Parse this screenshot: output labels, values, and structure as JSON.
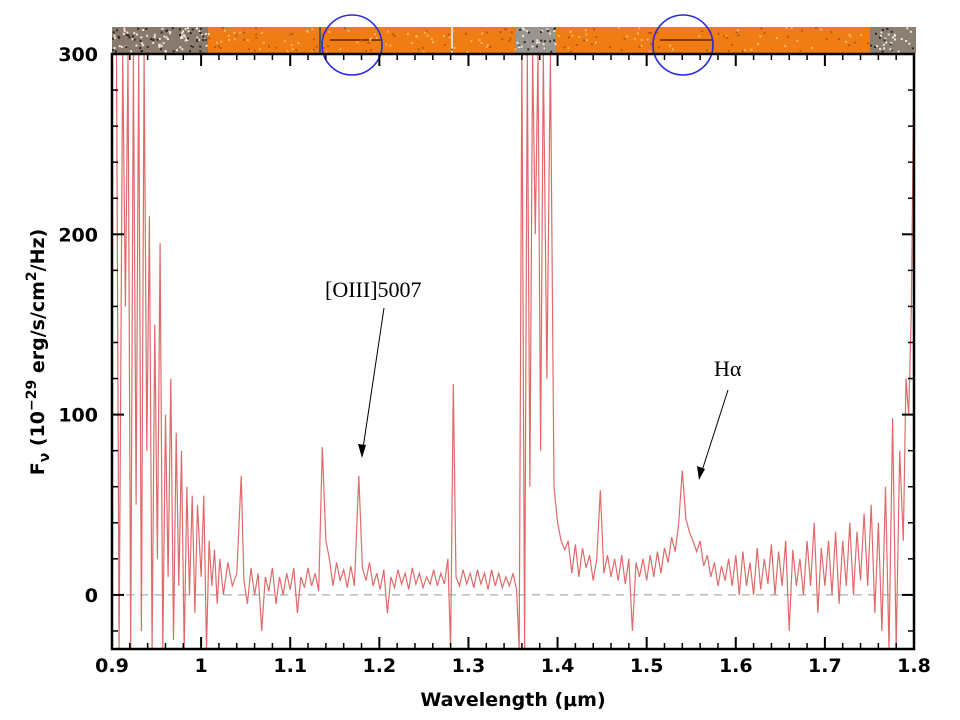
{
  "chart_data": {
    "type": "line",
    "xlabel_main": "Wavelength (",
    "xlabel_unit": "μm",
    "xlabel_close": ")",
    "ylabel_F": "F",
    "ylabel_sub": "ν",
    "ylabel_rest": " (10",
    "ylabel_exp": "−29",
    "ylabel_units": " erg/s/cm",
    "ylabel_sq": "2",
    "ylabel_end": "/Hz)",
    "xlim": [
      0.9,
      1.8
    ],
    "ylim": [
      -30,
      300
    ],
    "x_ticks": [
      0.9,
      1.0,
      1.1,
      1.2,
      1.3,
      1.4,
      1.5,
      1.6,
      1.7,
      1.8
    ],
    "x_tick_labels": [
      "0.9",
      "1",
      "1.1",
      "1.2",
      "1.3",
      "1.4",
      "1.5",
      "1.6",
      "1.7",
      "1.8"
    ],
    "y_ticks": [
      0,
      100,
      200,
      300
    ],
    "y_tick_labels": [
      "0",
      "100",
      "200",
      "300"
    ],
    "zero_line": "dashed",
    "line_color": "#e06a6a",
    "annotations": [
      {
        "text": "[OIII]5007",
        "x": 1.177,
        "y": 66
      },
      {
        "text": "Hα",
        "x": 1.553,
        "y": 65
      }
    ],
    "series": [
      {
        "values": [
          [
            0.905,
            300
          ],
          [
            0.908,
            -30
          ],
          [
            0.912,
            300
          ],
          [
            0.915,
            160
          ],
          [
            0.918,
            300
          ],
          [
            0.921,
            -30
          ],
          [
            0.924,
            300
          ],
          [
            0.927,
            50
          ],
          [
            0.93,
            300
          ],
          [
            0.933,
            -20
          ],
          [
            0.936,
            300
          ],
          [
            0.939,
            80
          ],
          [
            0.942,
            210
          ],
          [
            0.945,
            -30
          ],
          [
            0.948,
            150
          ],
          [
            0.951,
            20
          ],
          [
            0.954,
            195
          ],
          [
            0.957,
            -30
          ],
          [
            0.96,
            100
          ],
          [
            0.963,
            10
          ],
          [
            0.966,
            120
          ],
          [
            0.969,
            -25
          ],
          [
            0.972,
            90
          ],
          [
            0.975,
            5
          ],
          [
            0.978,
            80
          ],
          [
            0.981,
            -30
          ],
          [
            0.984,
            60
          ],
          [
            0.987,
            0
          ],
          [
            0.99,
            55
          ],
          [
            0.993,
            -10
          ],
          [
            0.996,
            50
          ],
          [
            1.0,
            10
          ],
          [
            1.003,
            55
          ],
          [
            1.006,
            -30
          ],
          [
            1.009,
            30
          ],
          [
            1.012,
            5
          ],
          [
            1.015,
            25
          ],
          [
            1.018,
            -5
          ],
          [
            1.021,
            20
          ],
          [
            1.025,
            0
          ],
          [
            1.03,
            18
          ],
          [
            1.035,
            5
          ],
          [
            1.04,
            12
          ],
          [
            1.045,
            66
          ],
          [
            1.048,
            8
          ],
          [
            1.052,
            -5
          ],
          [
            1.056,
            15
          ],
          [
            1.06,
            0
          ],
          [
            1.064,
            12
          ],
          [
            1.068,
            -20
          ],
          [
            1.072,
            10
          ],
          [
            1.076,
            2
          ],
          [
            1.08,
            15
          ],
          [
            1.084,
            -5
          ],
          [
            1.088,
            10
          ],
          [
            1.092,
            0
          ],
          [
            1.096,
            12
          ],
          [
            1.1,
            3
          ],
          [
            1.104,
            15
          ],
          [
            1.108,
            -10
          ],
          [
            1.112,
            10
          ],
          [
            1.116,
            4
          ],
          [
            1.12,
            15
          ],
          [
            1.124,
            5
          ],
          [
            1.128,
            12
          ],
          [
            1.132,
            2
          ],
          [
            1.136,
            82
          ],
          [
            1.14,
            30
          ],
          [
            1.144,
            20
          ],
          [
            1.148,
            5
          ],
          [
            1.152,
            18
          ],
          [
            1.156,
            8
          ],
          [
            1.16,
            14
          ],
          [
            1.164,
            4
          ],
          [
            1.168,
            16
          ],
          [
            1.172,
            5
          ],
          [
            1.177,
            66
          ],
          [
            1.181,
            15
          ],
          [
            1.185,
            8
          ],
          [
            1.189,
            18
          ],
          [
            1.193,
            5
          ],
          [
            1.197,
            12
          ],
          [
            1.201,
            3
          ],
          [
            1.205,
            14
          ],
          [
            1.209,
            -10
          ],
          [
            1.213,
            10
          ],
          [
            1.217,
            4
          ],
          [
            1.221,
            14
          ],
          [
            1.225,
            6
          ],
          [
            1.229,
            12
          ],
          [
            1.233,
            3
          ],
          [
            1.237,
            15
          ],
          [
            1.241,
            6
          ],
          [
            1.245,
            12
          ],
          [
            1.249,
            4
          ],
          [
            1.253,
            10
          ],
          [
            1.257,
            6
          ],
          [
            1.261,
            14
          ],
          [
            1.265,
            5
          ],
          [
            1.269,
            12
          ],
          [
            1.273,
            6
          ],
          [
            1.277,
            20
          ],
          [
            1.28,
            -30
          ],
          [
            1.283,
            117
          ],
          [
            1.286,
            10
          ],
          [
            1.29,
            5
          ],
          [
            1.294,
            14
          ],
          [
            1.298,
            6
          ],
          [
            1.302,
            12
          ],
          [
            1.306,
            4
          ],
          [
            1.31,
            14
          ],
          [
            1.314,
            6
          ],
          [
            1.318,
            12
          ],
          [
            1.322,
            3
          ],
          [
            1.326,
            14
          ],
          [
            1.33,
            5
          ],
          [
            1.334,
            12
          ],
          [
            1.338,
            4
          ],
          [
            1.342,
            10
          ],
          [
            1.346,
            5
          ],
          [
            1.35,
            12
          ],
          [
            1.354,
            3
          ],
          [
            1.357,
            -30
          ],
          [
            1.36,
            300
          ],
          [
            1.363,
            -30
          ],
          [
            1.366,
            300
          ],
          [
            1.369,
            60
          ],
          [
            1.372,
            300
          ],
          [
            1.375,
            200
          ],
          [
            1.378,
            300
          ],
          [
            1.381,
            80
          ],
          [
            1.384,
            300
          ],
          [
            1.388,
            120
          ],
          [
            1.392,
            300
          ],
          [
            1.396,
            60
          ],
          [
            1.4,
            40
          ],
          [
            1.404,
            30
          ],
          [
            1.408,
            25
          ],
          [
            1.412,
            30
          ],
          [
            1.416,
            12
          ],
          [
            1.42,
            28
          ],
          [
            1.424,
            10
          ],
          [
            1.428,
            26
          ],
          [
            1.432,
            15
          ],
          [
            1.436,
            22
          ],
          [
            1.44,
            8
          ],
          [
            1.444,
            20
          ],
          [
            1.448,
            58
          ],
          [
            1.452,
            12
          ],
          [
            1.456,
            22
          ],
          [
            1.46,
            10
          ],
          [
            1.464,
            20
          ],
          [
            1.468,
            8
          ],
          [
            1.472,
            22
          ],
          [
            1.476,
            6
          ],
          [
            1.48,
            20
          ],
          [
            1.484,
            -20
          ],
          [
            1.488,
            18
          ],
          [
            1.492,
            10
          ],
          [
            1.496,
            20
          ],
          [
            1.5,
            8
          ],
          [
            1.504,
            22
          ],
          [
            1.508,
            10
          ],
          [
            1.512,
            24
          ],
          [
            1.516,
            12
          ],
          [
            1.52,
            26
          ],
          [
            1.524,
            18
          ],
          [
            1.528,
            32
          ],
          [
            1.532,
            24
          ],
          [
            1.536,
            40
          ],
          [
            1.54,
            69
          ],
          [
            1.544,
            42
          ],
          [
            1.548,
            35
          ],
          [
            1.552,
            30
          ],
          [
            1.556,
            24
          ],
          [
            1.56,
            30
          ],
          [
            1.564,
            16
          ],
          [
            1.568,
            22
          ],
          [
            1.572,
            10
          ],
          [
            1.576,
            18
          ],
          [
            1.58,
            5
          ],
          [
            1.584,
            16
          ],
          [
            1.588,
            8
          ],
          [
            1.592,
            20
          ],
          [
            1.596,
            5
          ],
          [
            1.6,
            22
          ],
          [
            1.604,
            0
          ],
          [
            1.608,
            24
          ],
          [
            1.612,
            5
          ],
          [
            1.616,
            18
          ],
          [
            1.62,
            0
          ],
          [
            1.624,
            26
          ],
          [
            1.628,
            3
          ],
          [
            1.632,
            20
          ],
          [
            1.636,
            6
          ],
          [
            1.64,
            28
          ],
          [
            1.644,
            0
          ],
          [
            1.648,
            24
          ],
          [
            1.652,
            5
          ],
          [
            1.656,
            30
          ],
          [
            1.66,
            -20
          ],
          [
            1.664,
            25
          ],
          [
            1.668,
            5
          ],
          [
            1.672,
            20
          ],
          [
            1.676,
            0
          ],
          [
            1.68,
            30
          ],
          [
            1.684,
            5
          ],
          [
            1.688,
            40
          ],
          [
            1.692,
            -10
          ],
          [
            1.696,
            26
          ],
          [
            1.7,
            5
          ],
          [
            1.704,
            30
          ],
          [
            1.708,
            0
          ],
          [
            1.712,
            35
          ],
          [
            1.716,
            -5
          ],
          [
            1.72,
            30
          ],
          [
            1.724,
            5
          ],
          [
            1.728,
            40
          ],
          [
            1.732,
            0
          ],
          [
            1.736,
            35
          ],
          [
            1.74,
            8
          ],
          [
            1.744,
            45
          ],
          [
            1.748,
            5
          ],
          [
            1.752,
            50
          ],
          [
            1.756,
            -10
          ],
          [
            1.76,
            40
          ],
          [
            1.764,
            -20
          ],
          [
            1.768,
            60
          ],
          [
            1.772,
            -30
          ],
          [
            1.776,
            98
          ],
          [
            1.78,
            -30
          ],
          [
            1.784,
            80
          ],
          [
            1.788,
            30
          ],
          [
            1.791,
            120
          ],
          [
            1.794,
            100
          ],
          [
            1.797,
            157
          ],
          [
            1.8,
            300
          ]
        ]
      }
    ]
  }
}
